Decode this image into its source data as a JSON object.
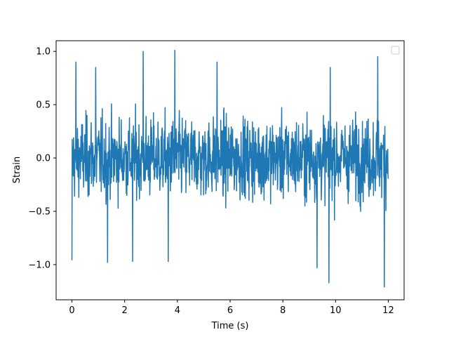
{
  "chart_data": {
    "type": "line",
    "title": "",
    "xlabel": "Time (s)",
    "ylabel": "Strain",
    "xlim": [
      -0.6,
      12.6
    ],
    "ylim": [
      -1.33,
      1.1
    ],
    "xticks": [
      0,
      2,
      4,
      6,
      8,
      10,
      12
    ],
    "xtick_labels": [
      "0",
      "2",
      "4",
      "6",
      "8",
      "10",
      "12"
    ],
    "yticks": [
      -1.0,
      -0.5,
      0.0,
      0.5,
      1.0
    ],
    "ytick_labels": [
      "−1.0",
      "−0.5",
      "0.0",
      "0.5",
      "1.0"
    ],
    "grid": false,
    "legend": {
      "placement": "top-right",
      "entries": []
    },
    "series": [
      {
        "color": "#1f77b4",
        "x_range": [
          0,
          12
        ],
        "points_count": 1200,
        "amplitude_envelope": [
          -1.21,
          1.0
        ],
        "typical_range": [
          -0.6,
          0.6
        ],
        "notable_peaks": [
          {
            "x": 0.15,
            "y": 0.9
          },
          {
            "x": 0.9,
            "y": 0.85
          },
          {
            "x": 2.7,
            "y": 1.0
          },
          {
            "x": 3.9,
            "y": 1.01
          },
          {
            "x": 5.5,
            "y": 0.9
          },
          {
            "x": 9.8,
            "y": 0.85
          },
          {
            "x": 11.6,
            "y": 0.95
          }
        ],
        "notable_troughs": [
          {
            "x": 0.0,
            "y": -0.96
          },
          {
            "x": 1.35,
            "y": -0.98
          },
          {
            "x": 2.3,
            "y": -0.97
          },
          {
            "x": 3.65,
            "y": -0.97
          },
          {
            "x": 9.3,
            "y": -1.03
          },
          {
            "x": 9.75,
            "y": -1.17
          },
          {
            "x": 11.85,
            "y": -1.21
          }
        ]
      }
    ]
  }
}
